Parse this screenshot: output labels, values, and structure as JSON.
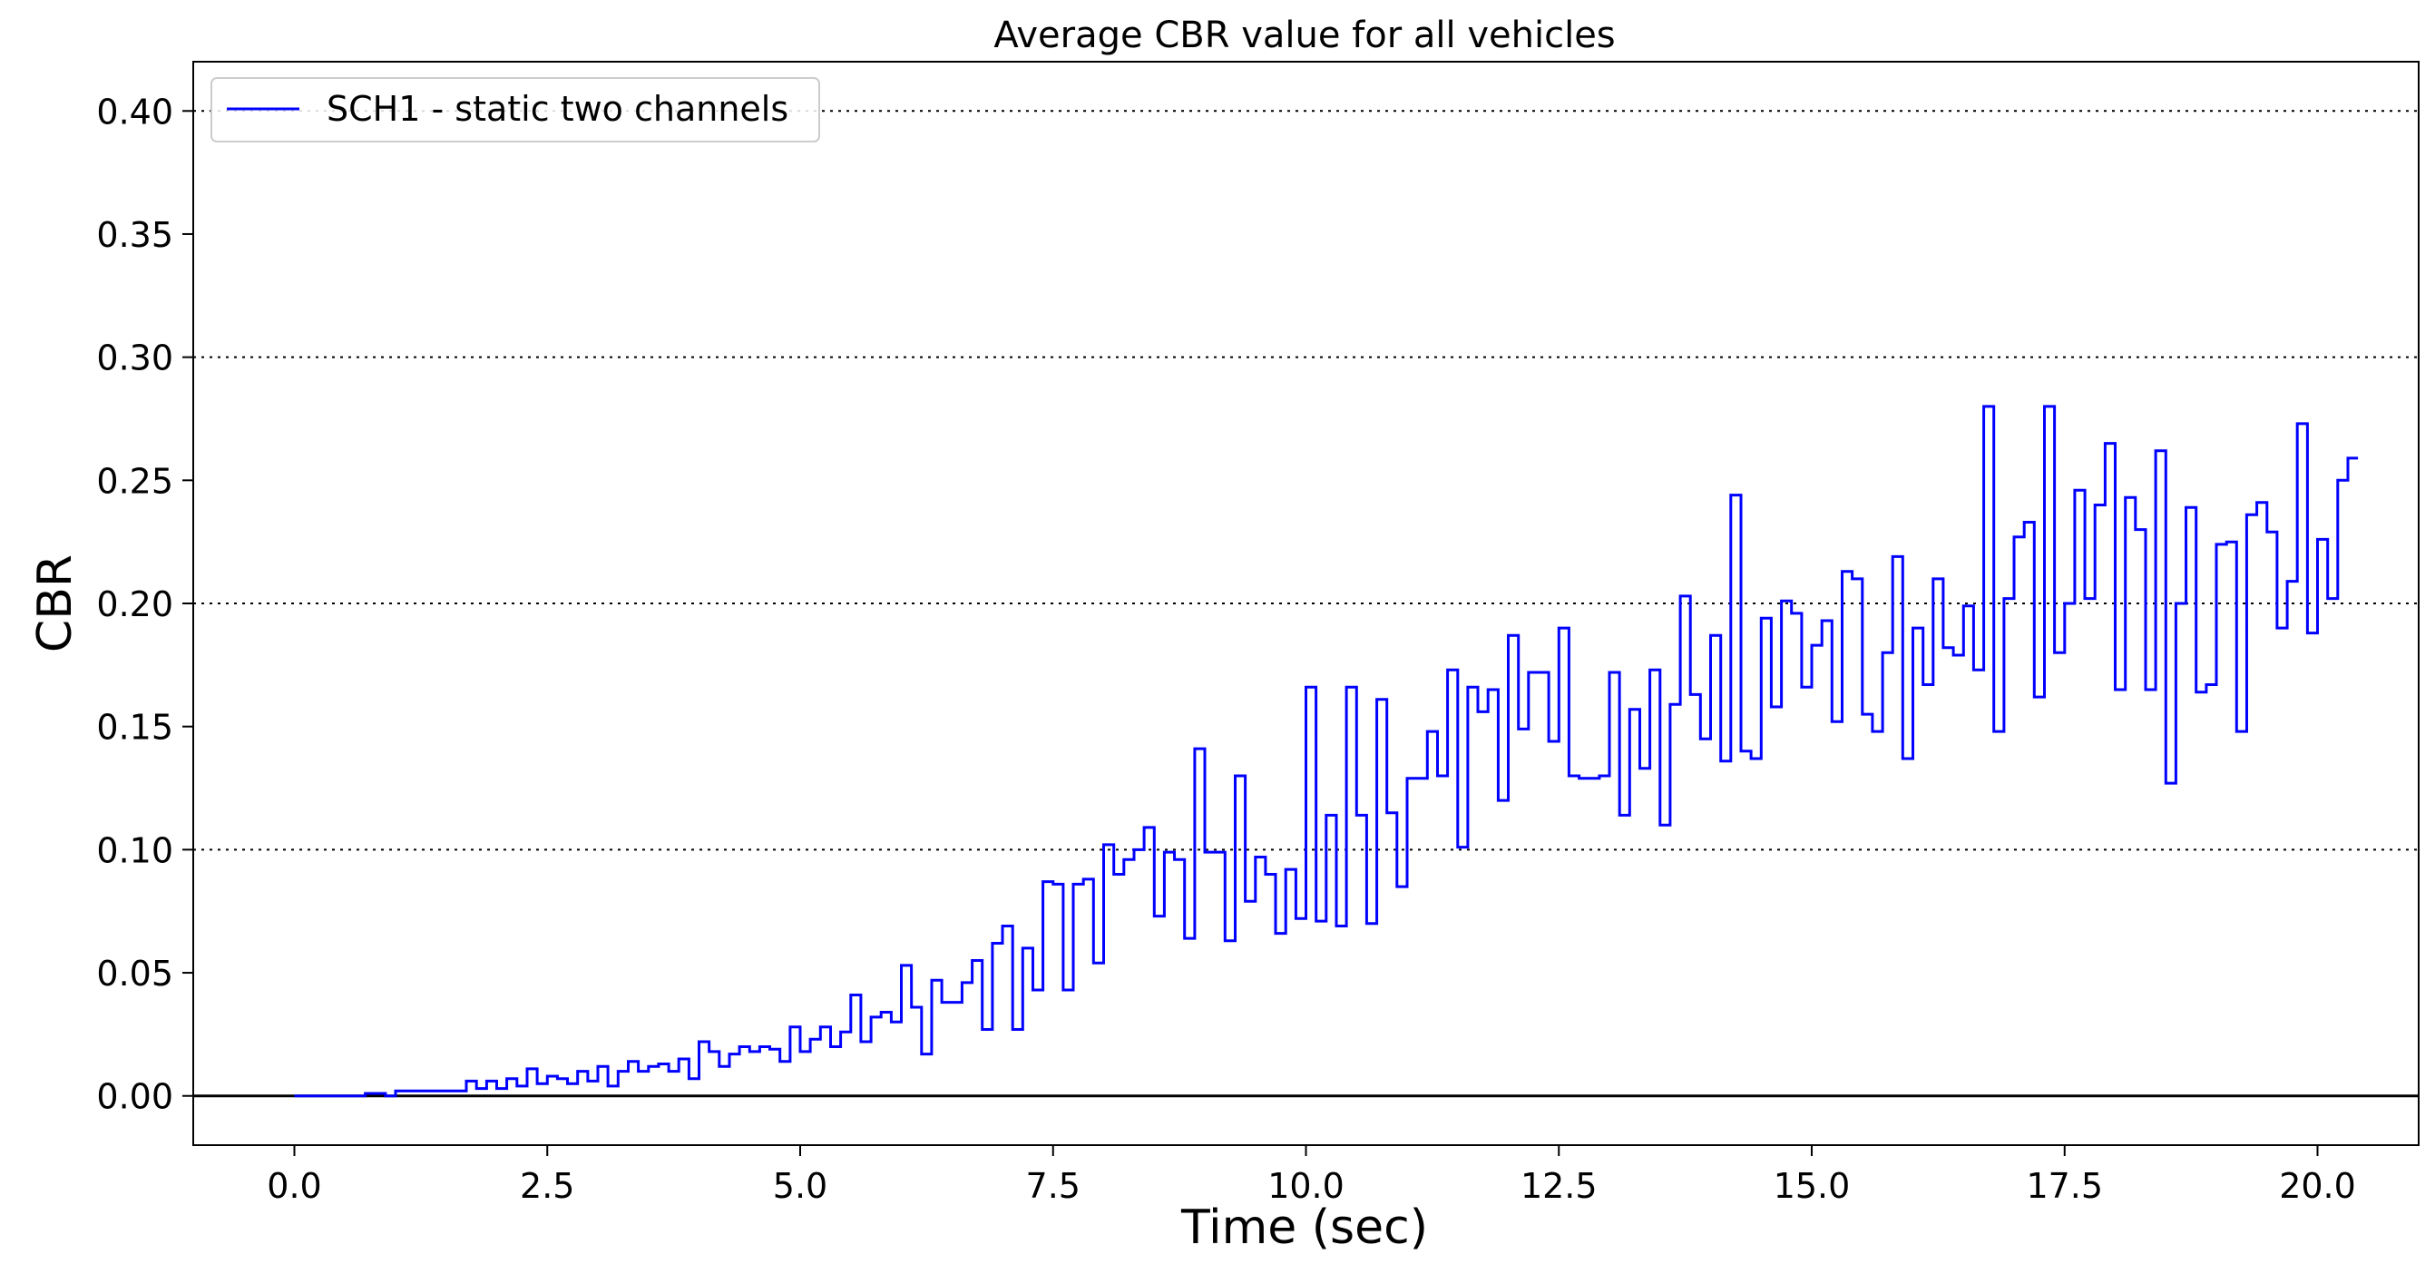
{
  "chart_data": {
    "type": "line",
    "title": "Average CBR value for all vehicles",
    "xlabel": "Time (sec)",
    "ylabel": "CBR",
    "xlim": [
      -1.0,
      21.0
    ],
    "ylim": [
      -0.02,
      0.42
    ],
    "xticks": [
      0.0,
      2.5,
      5.0,
      7.5,
      10.0,
      12.5,
      15.0,
      17.5,
      20.0
    ],
    "xtick_labels": [
      "0.0",
      "2.5",
      "5.0",
      "7.5",
      "10.0",
      "12.5",
      "15.0",
      "17.5",
      "20.0"
    ],
    "yticks": [
      0.0,
      0.05,
      0.1,
      0.15,
      0.2,
      0.25,
      0.3,
      0.35,
      0.4
    ],
    "ytick_labels": [
      "0.00",
      "0.05",
      "0.10",
      "0.15",
      "0.20",
      "0.25",
      "0.30",
      "0.35",
      "0.40"
    ],
    "grid": "y-dotted",
    "legend_position": "top-left",
    "colors": {
      "series": "#0000ff",
      "grid": "#000000",
      "zero_line": "#000000"
    },
    "series": [
      {
        "name": "SCH1 - static two channels",
        "step": "post",
        "dt": 0.1,
        "x_start": 0.0,
        "values": [
          0,
          0,
          0,
          0,
          0,
          0,
          0,
          0.001,
          0.001,
          0,
          0.002,
          0.002,
          0.002,
          0.002,
          0.002,
          0.002,
          0.002,
          0.006,
          0.003,
          0.006,
          0.003,
          0.007,
          0.004,
          0.011,
          0.005,
          0.008,
          0.007,
          0.005,
          0.01,
          0.006,
          0.012,
          0.004,
          0.01,
          0.014,
          0.01,
          0.012,
          0.013,
          0.01,
          0.015,
          0.007,
          0.022,
          0.018,
          0.012,
          0.017,
          0.02,
          0.018,
          0.02,
          0.019,
          0.014,
          0.028,
          0.018,
          0.023,
          0.028,
          0.02,
          0.026,
          0.041,
          0.022,
          0.032,
          0.034,
          0.03,
          0.053,
          0.036,
          0.017,
          0.047,
          0.038,
          0.038,
          0.046,
          0.055,
          0.027,
          0.062,
          0.069,
          0.027,
          0.06,
          0.043,
          0.087,
          0.086,
          0.043,
          0.086,
          0.088,
          0.054,
          0.102,
          0.09,
          0.096,
          0.1,
          0.109,
          0.073,
          0.099,
          0.096,
          0.064,
          0.141,
          0.099,
          0.099,
          0.063,
          0.13,
          0.079,
          0.097,
          0.09,
          0.066,
          0.092,
          0.072,
          0.166,
          0.071,
          0.114,
          0.069,
          0.166,
          0.114,
          0.07,
          0.161,
          0.115,
          0.085,
          0.129,
          0.129,
          0.148,
          0.13,
          0.173,
          0.101,
          0.166,
          0.156,
          0.165,
          0.12,
          0.187,
          0.149,
          0.172,
          0.172,
          0.144,
          0.19,
          0.13,
          0.129,
          0.129,
          0.13,
          0.172,
          0.114,
          0.157,
          0.133,
          0.173,
          0.11,
          0.159,
          0.203,
          0.163,
          0.145,
          0.187,
          0.136,
          0.244,
          0.14,
          0.137,
          0.194,
          0.158,
          0.201,
          0.196,
          0.166,
          0.183,
          0.193,
          0.152,
          0.213,
          0.21,
          0.155,
          0.148,
          0.18,
          0.219,
          0.137,
          0.19,
          0.167,
          0.21,
          0.182,
          0.179,
          0.199,
          0.173,
          0.28,
          0.148,
          0.202,
          0.227,
          0.233,
          0.162,
          0.28,
          0.18,
          0.2,
          0.246,
          0.202,
          0.24,
          0.265,
          0.165,
          0.243,
          0.23,
          0.165,
          0.262,
          0.127,
          0.2,
          0.239,
          0.164,
          0.167,
          0.224,
          0.225,
          0.148,
          0.236,
          0.241,
          0.229,
          0.19,
          0.209,
          0.273,
          0.188,
          0.226,
          0.202,
          0.25,
          0.259
        ]
      }
    ]
  }
}
